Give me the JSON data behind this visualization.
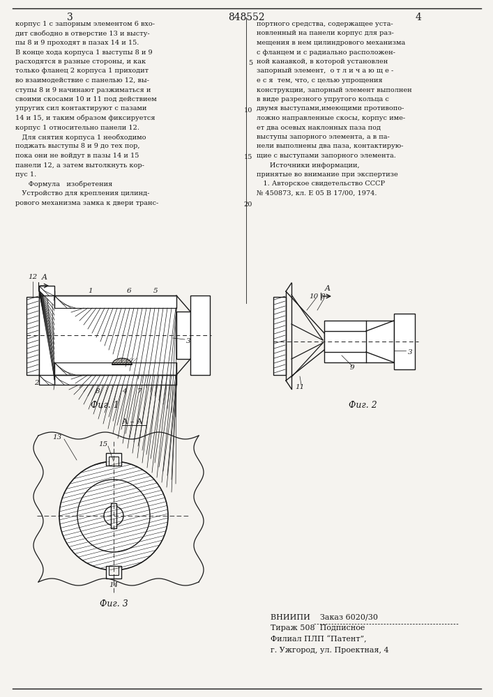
{
  "page_color": "#f5f3ef",
  "text_color": "#1a1a1a",
  "patent_number": "848552",
  "page_col_left": "3",
  "page_col_right": "4",
  "left_column_text": [
    "корпус 1 с запорным элементом 6 вхо-",
    "дит свободно в отверстие 13 и высту-",
    "пы 8 и 9 проходят в пазах 14 и 15.",
    "В конце хода корпуса 1 выступы 8 и 9",
    "расходятся в разные стороны, и как",
    "только фланец 2 корпуса 1 приходит",
    "во взаимодействие с панелью 12, вы-",
    "ступы 8 и 9 начинают разжиматься и",
    "своими скосами 10 и 11 под действием",
    "упругих сил контактируют с пазами",
    "14 и 15, и таким образом фиксируется",
    "корпус 1 относительно панели 12.",
    "   Для снятия корпуса 1 необходимо",
    "поджать выступы 8 и 9 до тех пор,",
    "пока они не войдут в пазы 14 и 15",
    "панели 12, а затем вытолкнуть кор-",
    "пус 1.",
    "      Формула   изобретения",
    "   Устройство для крепления цилинд-",
    "рового механизма замка к двери транс-"
  ],
  "right_column_text": [
    "портного средства, содержащее уста-",
    "новленный на панели корпус для раз-",
    "мещения в нем цилиндрового механизма",
    "с фланцем и с радиально расположен-",
    "ной канавкой, в которой установлен",
    "запорный элемент,  о т л и ч а ю щ е -",
    "е с я  тем, что, с целью упрощения",
    "конструкции, запорный элемент выполнен",
    "в виде разрезного упругого кольца с",
    "двумя выступами,имеющими противопо-",
    "ложно направленные скосы, корпус име-",
    "ет два осевых наклонных паза под",
    "выступы запорного элемента, а в па-",
    "нели выполнены два паза, контактирую-",
    "щие с выступами запорного элемента.",
    "      Источники информации,",
    "принятые во внимание при экспертизе",
    "   1. Авторское свидетельство СССР",
    "№ 450873, кл. Е 05 В 17/00, 1974."
  ],
  "bottom_text_line1": "ВНИИПИ    Заказ 6020/30",
  "bottom_text_line2": "Тираж 508  Подписное",
  "bottom_text_line3": "Филиал ПЛП “Патент”,",
  "bottom_text_line4": "г. Ужгород, ул. Проектная, 4"
}
